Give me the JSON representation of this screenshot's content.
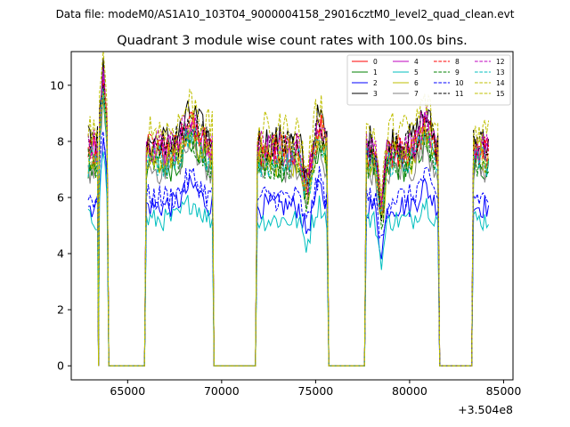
{
  "figure": {
    "suptitle": "Data file: modeM0/AS1A10_103T04_9000004158_29016cztM0_level2_quad_clean.evt"
  },
  "chart_data": {
    "type": "line",
    "title": "Quadrant 3 module wise count rates with 100.0s bins.",
    "xlabel": "",
    "ylabel": "",
    "x_offset_label": "+3.504e8",
    "xlim": [
      62000,
      85500
    ],
    "ylim": [
      -0.5,
      11.2
    ],
    "x_ticks": [
      65000,
      70000,
      75000,
      80000,
      85000
    ],
    "x_tick_labels": [
      "65000",
      "70000",
      "75000",
      "80000",
      "85000"
    ],
    "y_ticks": [
      0,
      2,
      4,
      6,
      8,
      10
    ],
    "y_tick_labels": [
      "0",
      "2",
      "4",
      "6",
      "8",
      "10"
    ],
    "legend_position": "top-right",
    "legend_columns": 4,
    "segments": [
      [
        62900,
        63400
      ],
      [
        63500,
        63900
      ],
      [
        66000,
        69500
      ],
      [
        71900,
        75600
      ],
      [
        77700,
        81500
      ],
      [
        83400,
        84200
      ]
    ],
    "gaps": [
      [
        63400,
        63500
      ],
      [
        63900,
        66000
      ],
      [
        69500,
        71900
      ],
      [
        75600,
        77700
      ],
      [
        81500,
        83400
      ]
    ],
    "series": [
      {
        "name": "0",
        "color": "#ff0000",
        "dash": "solid",
        "level": 7.6
      },
      {
        "name": "1",
        "color": "#008000",
        "dash": "solid",
        "level": 7.1
      },
      {
        "name": "2",
        "color": "#0000ff",
        "dash": "solid",
        "level": 5.7
      },
      {
        "name": "3",
        "color": "#000000",
        "dash": "solid",
        "level": 8.0
      },
      {
        "name": "4",
        "color": "#bf00bf",
        "dash": "solid",
        "level": 7.6
      },
      {
        "name": "5",
        "color": "#00bfbf",
        "dash": "solid",
        "level": 5.2
      },
      {
        "name": "6",
        "color": "#bfbf00",
        "dash": "solid",
        "level": 7.3
      },
      {
        "name": "7",
        "color": "#808080",
        "dash": "solid",
        "level": 7.0
      },
      {
        "name": "8",
        "color": "#ff0000",
        "dash": "dashed",
        "level": 7.7
      },
      {
        "name": "9",
        "color": "#008000",
        "dash": "dashed",
        "level": 7.2
      },
      {
        "name": "10",
        "color": "#0000ff",
        "dash": "dashed",
        "level": 6.0
      },
      {
        "name": "11",
        "color": "#000000",
        "dash": "dashed",
        "level": 7.8
      },
      {
        "name": "12",
        "color": "#bf00bf",
        "dash": "dashed",
        "level": 7.8
      },
      {
        "name": "13",
        "color": "#00bfbf",
        "dash": "dashed",
        "level": 7.3
      },
      {
        "name": "14",
        "color": "#bfbf00",
        "dash": "dashed",
        "level": 8.4
      },
      {
        "name": "15",
        "color": "#bfbf00",
        "dash": "dashed",
        "level": 7.5
      }
    ]
  }
}
